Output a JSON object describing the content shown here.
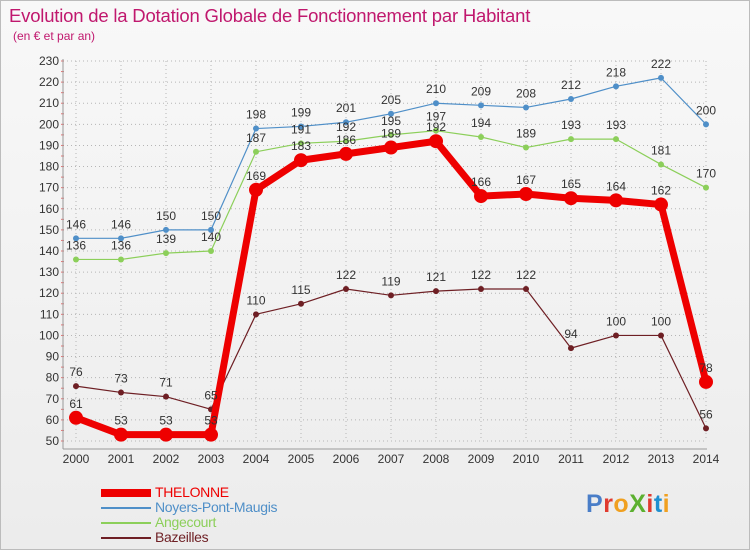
{
  "title": "Evolution de la Dotation Globale de Fonctionnement par Habitant",
  "subtitle": "(en € et par an)",
  "logo_text": "ProXiti",
  "colors": {
    "title": "#c0186e",
    "axis_text": "#333333",
    "grid": "#b5b5b5",
    "logo": [
      "#4a7ec8",
      "#e03a2f",
      "#f0a020",
      "#5cb030",
      "#e03a2f",
      "#1f8fd0",
      "#f0a020"
    ]
  },
  "chart_data": {
    "type": "line",
    "title": "Evolution de la Dotation Globale de Fonctionnement par Habitant",
    "subtitle": "(en € et par an)",
    "xlabel": "",
    "ylabel": "",
    "categories": [
      "2000",
      "2001",
      "2002",
      "2003",
      "2004",
      "2005",
      "2006",
      "2007",
      "2008",
      "2009",
      "2010",
      "2011",
      "2012",
      "2013",
      "2014"
    ],
    "yticks": [
      "50",
      "60",
      "70",
      "80",
      "90",
      "100",
      "110",
      "120",
      "130",
      "140",
      "150",
      "160",
      "170",
      "180",
      "190",
      "200",
      "210",
      "220",
      "230"
    ],
    "ylim": [
      50,
      230
    ],
    "grid": true,
    "legend": "bottom-left",
    "series": [
      {
        "name": "Noyers-Pont-Maugis",
        "color": "#4f8fc8",
        "emphasis": false,
        "values": [
          146,
          146,
          150,
          150,
          198,
          199,
          201,
          205,
          210,
          209,
          208,
          212,
          218,
          222,
          200
        ]
      },
      {
        "name": "Angecourt",
        "color": "#8ccf5a",
        "emphasis": false,
        "values": [
          136,
          136,
          139,
          140,
          187,
          191,
          192,
          195,
          197,
          194,
          189,
          193,
          193,
          181,
          170
        ]
      },
      {
        "name": "Bazeilles",
        "color": "#6e1f24",
        "emphasis": false,
        "values": [
          76,
          73,
          71,
          65,
          110,
          115,
          122,
          119,
          121,
          122,
          122,
          94,
          100,
          100,
          56
        ]
      },
      {
        "name": "THELONNE",
        "color": "#ee0000",
        "emphasis": true,
        "values": [
          61,
          53,
          53,
          53,
          169,
          183,
          186,
          189,
          192,
          166,
          167,
          165,
          164,
          162,
          78
        ]
      }
    ],
    "legend_order": [
      "THELONNE",
      "Noyers-Pont-Maugis",
      "Angecourt",
      "Bazeilles"
    ]
  }
}
